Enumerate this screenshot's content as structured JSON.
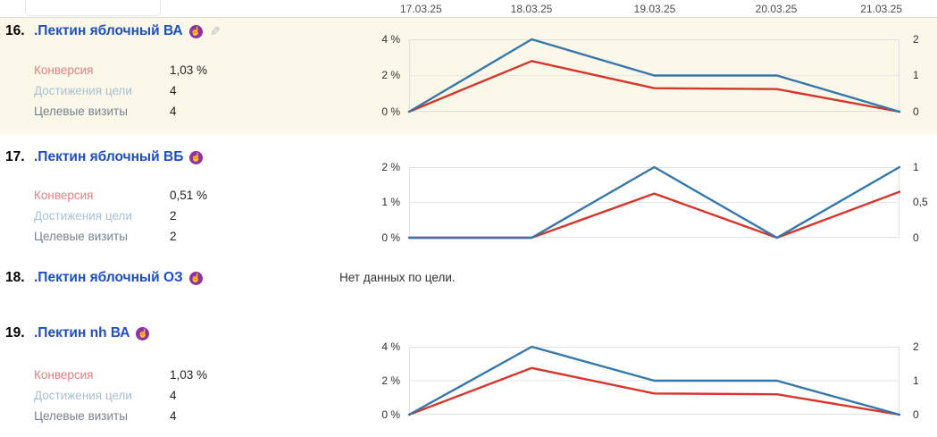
{
  "header": {
    "dates": [
      "17.03.25",
      "18.03.25",
      "19.03.25",
      "20.03.25",
      "21.03.25"
    ]
  },
  "metric_labels": {
    "conversion": "Конверсия",
    "goal_reaches": "Достижения цели",
    "goal_visits": "Целевые визиты"
  },
  "rows": [
    {
      "num": "16.",
      "title": ".Пектин яблочный ВА",
      "conversion": "1,03 %",
      "goal_reaches": "4",
      "goal_visits": "4"
    },
    {
      "num": "17.",
      "title": ".Пектин яблочный ВБ",
      "conversion": "0,51 %",
      "goal_reaches": "2",
      "goal_visits": "2"
    },
    {
      "num": "18.",
      "title": ".Пектин яблочный ОЗ",
      "no_data": "Нет данных по цели."
    },
    {
      "num": "19.",
      "title": ".Пектин nh ВА",
      "conversion": "1,03 %",
      "goal_reaches": "4",
      "goal_visits": "4"
    }
  ],
  "icons": {
    "goal_glyph": "☝",
    "edit_glyph": "✎"
  },
  "colors": {
    "link_blue": "#1d4fc0",
    "line_blue": "#3577a9",
    "line_red": "#d6352b",
    "row_highlight": "#fbf8ea",
    "goal_badge_purple": "#8f32a5",
    "conversion_label": "#df8184",
    "reaches_label": "#a9c0d4",
    "visits_label": "#75838e"
  },
  "chart_data": [
    {
      "type": "line",
      "row": "16",
      "x": [
        "17.03.25",
        "18.03.25",
        "19.03.25",
        "20.03.25",
        "21.03.25"
      ],
      "series": [
        {
          "name": "Конверсия",
          "axis": "left",
          "color": "#d6352b",
          "values": [
            0,
            2.8,
            1.3,
            1.25,
            0
          ]
        },
        {
          "name": "Достижения цели",
          "axis": "right",
          "color": "#3577a9",
          "values": [
            0,
            2,
            1,
            1,
            0
          ]
        }
      ],
      "left_axis": {
        "ticks": [
          "4 %",
          "2 %",
          "0 %"
        ],
        "max": 4
      },
      "right_axis": {
        "ticks": [
          "2",
          "1",
          "0"
        ],
        "max": 2
      },
      "grid": true,
      "legend": "none"
    },
    {
      "type": "line",
      "row": "17",
      "x": [
        "17.03.25",
        "18.03.25",
        "19.03.25",
        "20.03.25",
        "21.03.25"
      ],
      "series": [
        {
          "name": "Конверсия",
          "axis": "left",
          "color": "#d6352b",
          "values": [
            0,
            0,
            1.25,
            0,
            1.3
          ]
        },
        {
          "name": "Достижения цели",
          "axis": "right",
          "color": "#3577a9",
          "values": [
            0,
            0,
            1,
            0,
            1
          ]
        }
      ],
      "left_axis": {
        "ticks": [
          "2 %",
          "1 %",
          "0 %"
        ],
        "max": 2
      },
      "right_axis": {
        "ticks": [
          "1",
          "0,5",
          "0"
        ],
        "max": 1
      },
      "grid": true,
      "legend": "none"
    },
    {
      "type": "line",
      "row": "19",
      "x": [
        "17.03.25",
        "18.03.25",
        "19.03.25",
        "20.03.25",
        "21.03.25"
      ],
      "series": [
        {
          "name": "Конверсия",
          "axis": "left",
          "color": "#d6352b",
          "values": [
            0,
            2.75,
            1.25,
            1.2,
            0
          ]
        },
        {
          "name": "Достижения цели",
          "axis": "right",
          "color": "#3577a9",
          "values": [
            0,
            2,
            1,
            1,
            0
          ]
        }
      ],
      "left_axis": {
        "ticks": [
          "4 %",
          "2 %",
          "0 %"
        ],
        "max": 4
      },
      "right_axis": {
        "ticks": [
          "2",
          "1",
          "0"
        ],
        "max": 2
      },
      "grid": true,
      "legend": "none"
    }
  ]
}
